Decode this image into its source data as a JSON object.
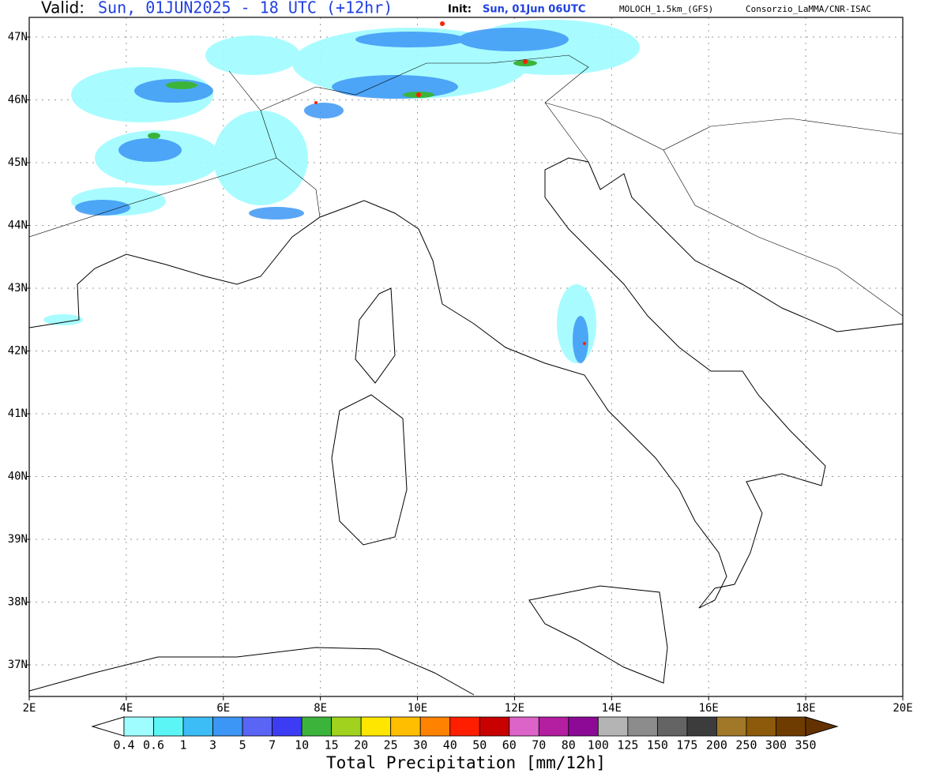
{
  "header": {
    "valid_label": "Valid:",
    "valid_time": "Sun, 01JUN2025 - 18 UTC (+12hr)",
    "init_label": "Init:",
    "init_time": "Sun, 01Jun 06UTC",
    "model": "MOLOCH_1.5km_(GFS)",
    "source": "Consorzio_LaMMA/CNR-ISAC"
  },
  "map": {
    "lon_labels": [
      "2E",
      "4E",
      "6E",
      "8E",
      "10E",
      "12E",
      "14E",
      "16E",
      "18E",
      "20E"
    ],
    "lat_labels": [
      "47N",
      "46N",
      "45N",
      "44N",
      "43N",
      "42N",
      "41N",
      "40N",
      "39N",
      "38N",
      "37N"
    ]
  },
  "colorbar": {
    "title": "Total Precipitation [mm/12h]",
    "labels": [
      0.4,
      0.6,
      1,
      3,
      5,
      7,
      10,
      15,
      20,
      25,
      30,
      40,
      50,
      60,
      70,
      80,
      100,
      125,
      150,
      175,
      200,
      250,
      300,
      350
    ],
    "under_color": "#ffffff",
    "colors": [
      "#9ffcff",
      "#5cf5f5",
      "#3cbdf5",
      "#3c96f5",
      "#5a64f5",
      "#3c3cf5",
      "#3cb43c",
      "#a0d21e",
      "#ffe600",
      "#ffbe00",
      "#ff8200",
      "#ff1e00",
      "#c80000",
      "#dc64c8",
      "#b41ea0",
      "#8c0a96",
      "#b4b4b4",
      "#8c8c8c",
      "#646464",
      "#3c3c3c",
      "#a07828",
      "#8c5a0a",
      "#6e3c00"
    ],
    "over_color": "#643200"
  }
}
